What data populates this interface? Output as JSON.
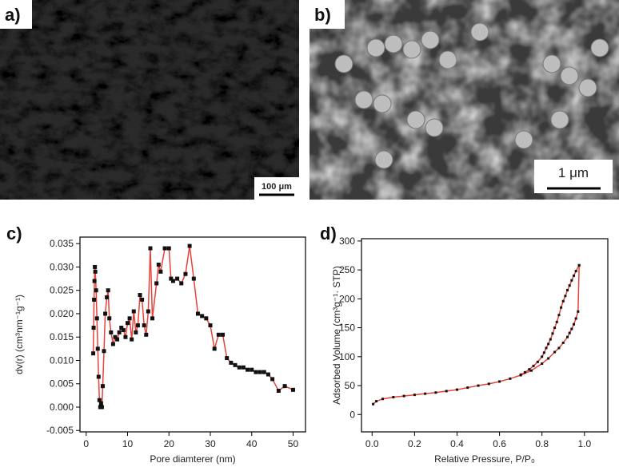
{
  "images": [
    {
      "label": "a)",
      "scale_bar": "100 μm"
    },
    {
      "label": "b)",
      "scale_bar": "1 μm"
    }
  ],
  "chart_data": [
    {
      "type": "line",
      "panel_label": "c)",
      "x_label": "Pore diamterer (nm)",
      "y_label": "dv(r) (cm³nm⁻¹g⁻¹)",
      "xlim": [
        -1.5,
        53
      ],
      "ylim": [
        -0.0053,
        0.0364
      ],
      "xticks": [
        0,
        10,
        20,
        30,
        40,
        50
      ],
      "yticks": [
        {
          "value": -0.005,
          "label": "-0.005"
        },
        {
          "value": 0,
          "label": "0.000"
        },
        0.005,
        {
          "value": 0.01,
          "label": "0.010"
        },
        0.015,
        {
          "value": 0.02,
          "label": "0.020"
        },
        0.025,
        {
          "value": 0.03,
          "label": "0.030"
        },
        0.035
      ],
      "series": [
        {
          "color": "#e8423a",
          "x": [
            1.7,
            1.8,
            1.9,
            2.0,
            2.1,
            2.2,
            2.4,
            2.6,
            2.8,
            3.0,
            3.2,
            3.4,
            3.6,
            3.8,
            4.0,
            4.3,
            4.6,
            5.0,
            5.3,
            5.6,
            6.0,
            6.5,
            7.0,
            7.5,
            8.0,
            8.5,
            9.0,
            9.5,
            10,
            10.5,
            11,
            11.5,
            12,
            12.5,
            13,
            13.5,
            14,
            14.5,
            15,
            15.5,
            16,
            17,
            17.5,
            18,
            19,
            20,
            20.5,
            21,
            22,
            23,
            24,
            25,
            26,
            27,
            28,
            29,
            30,
            31,
            32,
            33,
            34,
            35,
            36,
            37,
            38,
            39,
            40,
            41,
            42,
            43,
            44,
            45,
            46.5,
            48,
            50
          ],
          "values": [
            0.0115,
            0.017,
            0.023,
            0.027,
            0.03,
            0.029,
            0.025,
            0.019,
            0.0125,
            0.0065,
            0.0015,
            0.0,
            0.0008,
            0.0,
            0.0045,
            0.012,
            0.02,
            0.0235,
            0.025,
            0.019,
            0.016,
            0.0135,
            0.015,
            0.0145,
            0.016,
            0.017,
            0.0165,
            0.015,
            0.018,
            0.019,
            0.0145,
            0.0205,
            0.016,
            0.0175,
            0.024,
            0.023,
            0.0175,
            0.0155,
            0.0205,
            0.034,
            0.019,
            0.0265,
            0.0305,
            0.029,
            0.034,
            0.034,
            0.0275,
            0.027,
            0.0275,
            0.0265,
            0.0285,
            0.0345,
            0.0275,
            0.02,
            0.0195,
            0.019,
            0.0175,
            0.0125,
            0.0155,
            0.0155,
            0.0105,
            0.0095,
            0.009,
            0.0085,
            0.0085,
            0.008,
            0.008,
            0.0075,
            0.0075,
            0.0075,
            0.007,
            0.006,
            0.0035,
            0.0045,
            0.0037
          ]
        }
      ]
    },
    {
      "type": "line",
      "panel_label": "d)",
      "x_label": "Relative Pressure, P/P₀",
      "y_label": "Adsorbed Volume (cm³g⁻¹· STP)",
      "xlim": [
        -0.05,
        1.11
      ],
      "ylim": [
        -30,
        304
      ],
      "xticks": [
        {
          "value": 0,
          "label": "0.0"
        },
        0.2,
        0.4,
        0.6,
        0.8,
        {
          "value": 1,
          "label": "1.0"
        }
      ],
      "yticks": [
        0,
        50,
        100,
        150,
        200,
        250,
        300
      ],
      "series": [
        {
          "color": "#e8423a",
          "x": [
            0.005,
            0.02,
            0.05,
            0.1,
            0.15,
            0.2,
            0.25,
            0.3,
            0.35,
            0.4,
            0.45,
            0.5,
            0.55,
            0.6,
            0.65,
            0.7,
            0.75,
            0.8,
            0.83,
            0.86,
            0.88,
            0.9,
            0.92,
            0.93,
            0.94,
            0.95,
            0.96,
            0.97,
            0.975
          ],
          "values": [
            18,
            23,
            27,
            30,
            32,
            34,
            36,
            38,
            40.5,
            43,
            46.5,
            50,
            53,
            57,
            62,
            68,
            76,
            88,
            97,
            108,
            115,
            124,
            134,
            141,
            148,
            156,
            166,
            178,
            258
          ]
        },
        {
          "color": "#e8423a",
          "x": [
            0.975,
            0.96,
            0.95,
            0.94,
            0.93,
            0.92,
            0.91,
            0.9,
            0.89,
            0.88,
            0.87,
            0.86,
            0.85,
            0.84,
            0.83,
            0.82,
            0.81,
            0.8,
            0.78,
            0.76,
            0.74,
            0.72,
            0.7
          ],
          "values": [
            258,
            248,
            240,
            232,
            223,
            215,
            205,
            196,
            185,
            172,
            160,
            150,
            140,
            130,
            122,
            115,
            107,
            100,
            91,
            84,
            78,
            73,
            69
          ]
        }
      ]
    }
  ]
}
